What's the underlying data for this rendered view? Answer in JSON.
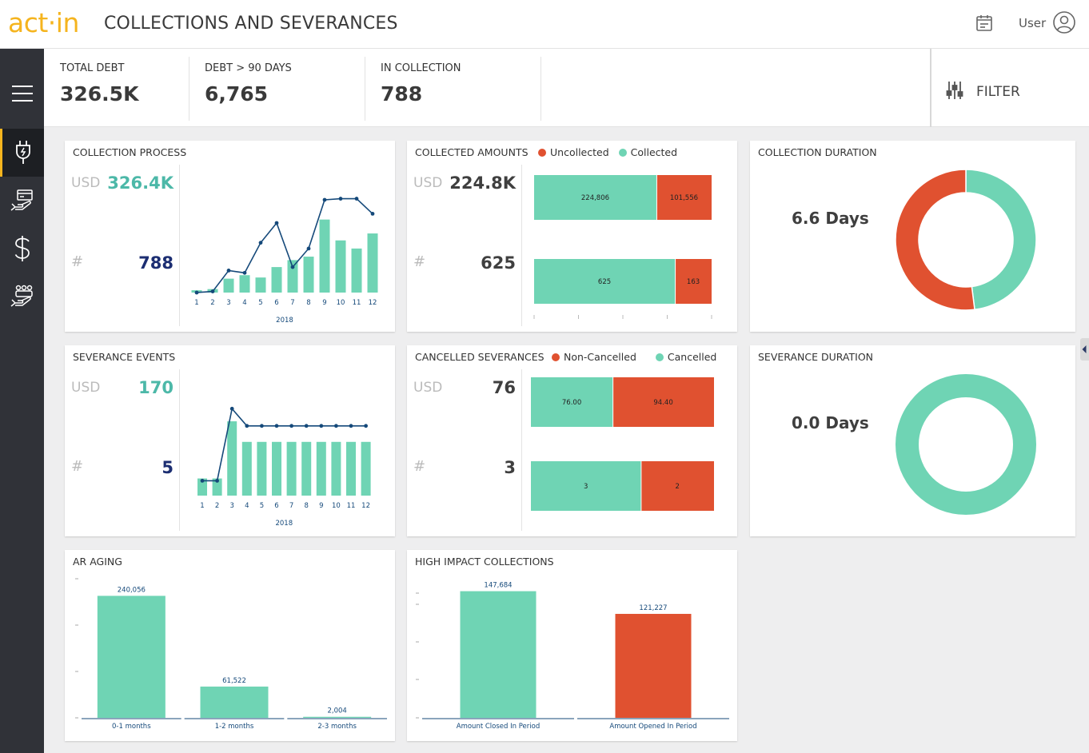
{
  "header": {
    "logo": "act·in",
    "title": "COLLECTIONS AND SEVERANCES",
    "user_label": "User",
    "calendar_icon": "calendar-icon",
    "user_icon": "user-avatar-icon"
  },
  "sidebar": {
    "items": [
      {
        "icon": "plug-icon",
        "active": true
      },
      {
        "icon": "card-hand-icon",
        "active": false
      },
      {
        "icon": "dollar-icon",
        "active": false
      },
      {
        "icon": "people-hand-icon",
        "active": false
      }
    ]
  },
  "kpis": [
    {
      "label": "TOTAL DEBT",
      "value": "326.5K"
    },
    {
      "label": "DEBT > 90 DAYS",
      "value": "6,765"
    },
    {
      "label": "IN COLLECTION",
      "value": "788"
    }
  ],
  "filter": {
    "label": "FILTER"
  },
  "colors": {
    "teal": "#6fd4b4",
    "red": "#e05130",
    "navy": "#15497a",
    "accent": "#f5b41e",
    "blue_num": "#1c2e72",
    "teal_num": "#4cb8a8"
  },
  "cards": {
    "collection_process": {
      "title": "COLLECTION PROCESS",
      "usd_label": "USD",
      "usd_value": "326.4K",
      "hash_label": "#",
      "count_value": "788"
    },
    "collected_amounts": {
      "title": "COLLECTED AMOUNTS",
      "legend": [
        "Uncollected",
        "Collected"
      ],
      "usd_label": "USD",
      "usd_value": "224.8K",
      "hash_label": "#",
      "count_value": "625"
    },
    "collection_duration": {
      "title": "COLLECTION DURATION",
      "value": "6.6 Days"
    },
    "severance_events": {
      "title": "SEVERANCE EVENTS",
      "usd_label": "USD",
      "usd_value": "170",
      "hash_label": "#",
      "count_value": "5"
    },
    "cancelled_severances": {
      "title": "CANCELLED SEVERANCES",
      "legend": [
        "Non-Cancelled",
        "Cancelled"
      ],
      "usd_label": "USD",
      "usd_value": "76",
      "hash_label": "#",
      "count_value": "3"
    },
    "severance_duration": {
      "title": "SEVERANCE DURATION",
      "value": "0.0 Days"
    },
    "ar_aging": {
      "title": "AR AGING"
    },
    "high_impact": {
      "title": "HIGH IMPACT COLLECTIONS"
    }
  },
  "chart_data": [
    {
      "id": "collection_process",
      "type": "bar+line",
      "categories": [
        "1",
        "2",
        "3",
        "4",
        "5",
        "6",
        "7",
        "8",
        "9",
        "10",
        "11",
        "12"
      ],
      "xlabel": "2018",
      "series": [
        {
          "name": "bars",
          "values": [
            2,
            3,
            12,
            15,
            13,
            22,
            28,
            31,
            63,
            45,
            38,
            51
          ]
        },
        {
          "name": "line",
          "values": [
            0,
            1,
            19,
            17,
            43,
            60,
            22,
            38,
            80,
            81,
            81,
            68
          ]
        }
      ],
      "ylim": [
        0,
        100
      ]
    },
    {
      "id": "collected_amounts",
      "type": "stacked-bar-horizontal",
      "rows": [
        {
          "collected": 224806,
          "uncollected": 101556,
          "labels": [
            "224,806",
            "101,556"
          ]
        },
        {
          "collected": 625,
          "uncollected": 163,
          "labels": [
            "625",
            "163"
          ]
        }
      ]
    },
    {
      "id": "collection_duration",
      "type": "pie",
      "slices": [
        {
          "name": "teal",
          "value": 48
        },
        {
          "name": "red",
          "value": 52
        }
      ]
    },
    {
      "id": "severance_events",
      "type": "bar+line",
      "categories": [
        "1",
        "2",
        "3",
        "4",
        "5",
        "6",
        "7",
        "8",
        "9",
        "10",
        "11",
        "12"
      ],
      "xlabel": "2018",
      "series": [
        {
          "name": "bars",
          "values": [
            15,
            15,
            65,
            47,
            47,
            47,
            47,
            47,
            47,
            47,
            47,
            47
          ]
        },
        {
          "name": "line",
          "values": [
            13,
            13,
            76,
            61,
            61,
            61,
            61,
            61,
            61,
            61,
            61,
            61
          ]
        }
      ],
      "ylim": [
        0,
        100
      ]
    },
    {
      "id": "cancelled_severances",
      "type": "stacked-bar-horizontal",
      "rows": [
        {
          "cancelled": 76,
          "noncancelled": 94.4,
          "labels": [
            "76.00",
            "94.40"
          ]
        },
        {
          "cancelled": 3,
          "noncancelled": 2,
          "labels": [
            "3",
            "2"
          ]
        }
      ]
    },
    {
      "id": "severance_duration",
      "type": "pie",
      "slices": [
        {
          "name": "teal",
          "value": 100
        }
      ]
    },
    {
      "id": "ar_aging",
      "type": "bar",
      "categories": [
        "0-1 months",
        "1-2 months",
        "2-3 months"
      ],
      "values": [
        240056,
        61522,
        2004
      ],
      "labels": [
        "240,056",
        "61,522",
        "2,004"
      ],
      "ylim": [
        0,
        280000
      ]
    },
    {
      "id": "high_impact",
      "type": "bar",
      "categories": [
        "Amount Closed In Period",
        "Amount Opened In Period"
      ],
      "values": [
        147684,
        121227
      ],
      "labels": [
        "147,684",
        "121,227"
      ],
      "colors": [
        "#6fd4b4",
        "#e05130"
      ],
      "ylim": [
        0,
        165000
      ]
    }
  ]
}
